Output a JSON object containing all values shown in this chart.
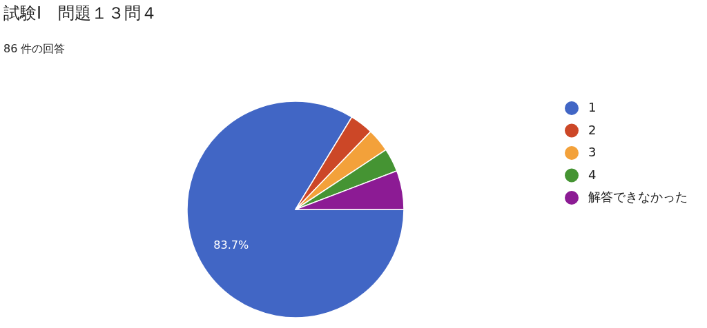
{
  "chart_data": {
    "type": "pie",
    "title": "試験Ⅰ　問題１３問４",
    "subtitle": "86 件の回答",
    "categories": [
      "1",
      "2",
      "3",
      "4",
      "解答できなかった"
    ],
    "values": [
      83.7,
      3.5,
      3.5,
      3.5,
      5.8
    ],
    "colors": [
      "#4166c5",
      "#cc4727",
      "#f3a13a",
      "#459433",
      "#8c1b94"
    ],
    "value_labels": [
      "83.7%",
      null,
      null,
      null,
      null
    ],
    "legend": "right"
  }
}
